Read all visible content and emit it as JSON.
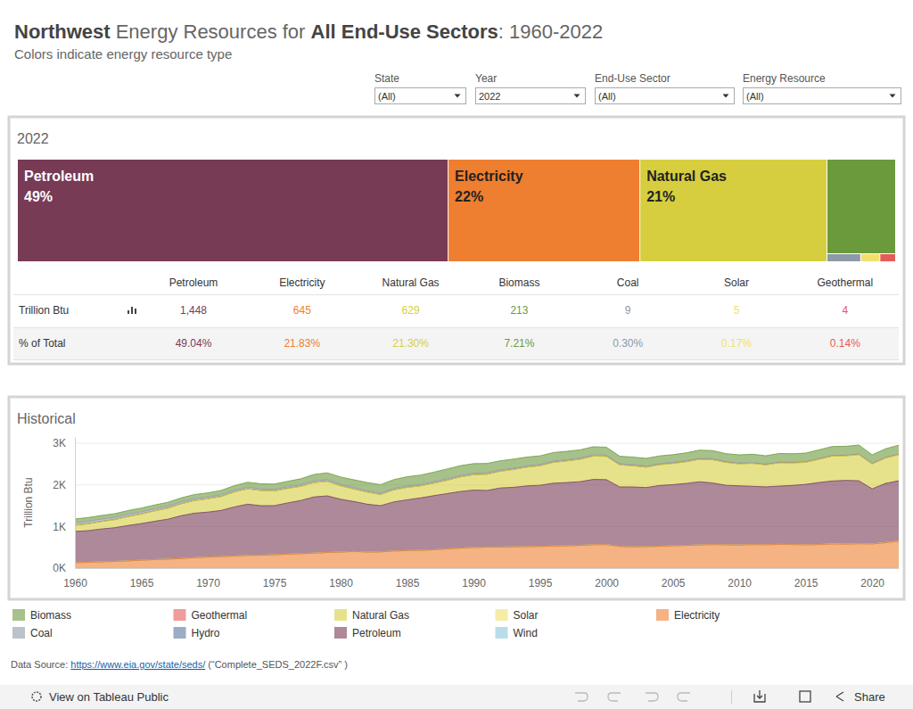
{
  "header": {
    "title": [
      {
        "text": "Northwest",
        "bold": true
      },
      {
        "text": " Energy Resources for ",
        "bold": false
      },
      {
        "text": "All End-Use Sectors",
        "bold": true
      },
      {
        "text": ": 1960-2022",
        "bold": false
      }
    ],
    "subtitle": "Colors indicate energy resource type"
  },
  "filters": [
    {
      "label": "State",
      "value": "(All)"
    },
    {
      "label": "Year",
      "value": "2022"
    },
    {
      "label": "End-Use Sector",
      "value": "(All)"
    },
    {
      "label": "Energy Resource",
      "value": "(All)"
    }
  ],
  "chart_data": [
    {
      "type": "treemap",
      "title": "2022",
      "categories": [
        "Petroleum",
        "Electricity",
        "Natural Gas",
        "Biomass",
        "Coal",
        "Solar",
        "Geothermal"
      ],
      "values": [
        49.04,
        21.83,
        21.3,
        7.21,
        0.3,
        0.17,
        0.14
      ],
      "value_labels": [
        "49%",
        "22%",
        "21%",
        null,
        null,
        null,
        null
      ],
      "colors": [
        "#773B56",
        "#EE7E30",
        "#D6CE3F",
        "#6B9A3C",
        "#8D99A6",
        "#F2E06B",
        "#E45B57"
      ]
    },
    {
      "type": "area",
      "title": "Historical",
      "y_label": "Trillion Btu",
      "stacked": true,
      "grid": true,
      "xlim": [
        1960,
        2022
      ],
      "xticks": [
        1960,
        1965,
        1970,
        1975,
        1980,
        1985,
        1990,
        1995,
        2000,
        2005,
        2010,
        2015,
        2020
      ],
      "ylim": [
        0,
        3150
      ],
      "yticks": [
        {
          "value": 0,
          "label": "0K"
        },
        {
          "value": 1000,
          "label": "1K"
        },
        {
          "value": 2000,
          "label": "2K"
        },
        {
          "value": 3000,
          "label": "3K"
        }
      ],
      "x": [
        1960,
        1961,
        1962,
        1963,
        1964,
        1965,
        1966,
        1967,
        1968,
        1969,
        1970,
        1971,
        1972,
        1973,
        1974,
        1975,
        1976,
        1977,
        1978,
        1979,
        1980,
        1981,
        1982,
        1983,
        1984,
        1985,
        1986,
        1987,
        1988,
        1989,
        1990,
        1991,
        1992,
        1993,
        1994,
        1995,
        1996,
        1997,
        1998,
        1999,
        2000,
        2001,
        2002,
        2003,
        2004,
        2005,
        2006,
        2007,
        2008,
        2009,
        2010,
        2011,
        2012,
        2013,
        2014,
        2015,
        2016,
        2017,
        2018,
        2019,
        2020,
        2021,
        2022
      ],
      "series": [
        {
          "name": "Biomass",
          "color": "#6B9A3C",
          "values": [
            90,
            90,
            88,
            87,
            88,
            90,
            90,
            92,
            95,
            98,
            100,
            105,
            110,
            115,
            120,
            125,
            130,
            140,
            155,
            165,
            175,
            185,
            195,
            200,
            210,
            220,
            225,
            230,
            235,
            235,
            230,
            225,
            220,
            215,
            210,
            205,
            205,
            200,
            195,
            195,
            190,
            180,
            180,
            185,
            185,
            185,
            190,
            195,
            195,
            190,
            195,
            200,
            200,
            205,
            205,
            205,
            210,
            215,
            215,
            215,
            205,
            210,
            213
          ]
        },
        {
          "name": "Coal",
          "color": "#8D99A6",
          "values": [
            60,
            58,
            56,
            55,
            54,
            52,
            50,
            48,
            46,
            44,
            42,
            40,
            40,
            42,
            40,
            38,
            38,
            40,
            40,
            38,
            36,
            35,
            34,
            33,
            34,
            33,
            32,
            33,
            34,
            34,
            33,
            32,
            31,
            31,
            30,
            30,
            30,
            29,
            28,
            28,
            27,
            25,
            24,
            24,
            23,
            22,
            21,
            21,
            20,
            17,
            17,
            16,
            15,
            15,
            14,
            13,
            12,
            12,
            11,
            11,
            10,
            10,
            9
          ]
        },
        {
          "name": "Geothermal",
          "color": "#E45B57",
          "values": [
            1,
            1,
            1,
            1,
            1,
            1,
            1,
            1,
            1,
            1,
            1,
            1,
            1,
            1,
            1,
            1,
            1,
            1,
            1,
            1,
            2,
            2,
            2,
            2,
            2,
            2,
            2,
            2,
            2,
            2,
            2,
            2,
            2,
            2,
            2,
            2,
            2,
            2,
            2,
            2,
            3,
            3,
            3,
            3,
            3,
            3,
            3,
            3,
            3,
            3,
            3,
            3,
            3,
            3,
            3,
            3,
            3,
            3,
            3,
            3,
            3,
            3,
            4
          ]
        },
        {
          "name": "Hydro",
          "color": "#5977A0",
          "values": [
            0,
            0,
            0,
            0,
            0,
            0,
            0,
            0,
            0,
            0,
            0,
            0,
            0,
            0,
            0,
            0,
            0,
            0,
            0,
            0,
            0,
            0,
            0,
            0,
            0,
            0,
            0,
            0,
            0,
            0,
            0,
            0,
            0,
            0,
            0,
            0,
            0,
            0,
            0,
            0,
            0,
            0,
            0,
            0,
            0,
            0,
            0,
            0,
            0,
            0,
            0,
            0,
            0,
            0,
            0,
            0,
            0,
            0,
            0,
            0,
            0,
            0,
            0
          ]
        },
        {
          "name": "Natural Gas",
          "color": "#D6CE3F",
          "values": [
            150,
            165,
            180,
            195,
            215,
            230,
            250,
            265,
            285,
            305,
            320,
            335,
            360,
            370,
            365,
            355,
            350,
            340,
            345,
            350,
            320,
            300,
            290,
            270,
            290,
            300,
            290,
            300,
            320,
            350,
            370,
            390,
            400,
            430,
            450,
            470,
            500,
            520,
            540,
            560,
            560,
            530,
            510,
            490,
            500,
            510,
            520,
            540,
            560,
            550,
            530,
            550,
            530,
            560,
            540,
            530,
            560,
            600,
            590,
            630,
            600,
            610,
            629
          ]
        },
        {
          "name": "Petroleum",
          "color": "#773B56",
          "values": [
            750,
            760,
            790,
            810,
            850,
            880,
            920,
            960,
            1030,
            1070,
            1080,
            1110,
            1180,
            1230,
            1190,
            1180,
            1230,
            1280,
            1350,
            1360,
            1270,
            1200,
            1150,
            1110,
            1180,
            1220,
            1260,
            1300,
            1330,
            1360,
            1380,
            1360,
            1420,
            1430,
            1460,
            1470,
            1510,
            1520,
            1530,
            1570,
            1560,
            1430,
            1440,
            1420,
            1460,
            1470,
            1490,
            1520,
            1480,
            1430,
            1420,
            1400,
            1390,
            1400,
            1420,
            1450,
            1490,
            1510,
            1530,
            1510,
            1320,
            1420,
            1448
          ]
        },
        {
          "name": "Solar",
          "color": "#F2E06B",
          "values": [
            0,
            0,
            0,
            0,
            0,
            0,
            0,
            0,
            0,
            0,
            0,
            0,
            0,
            0,
            0,
            0,
            0,
            0,
            0,
            0,
            0,
            0,
            0,
            0,
            0,
            0,
            0,
            0,
            0,
            0,
            0,
            0,
            0,
            0,
            0,
            0,
            0,
            0,
            0,
            0,
            0,
            0,
            0,
            0,
            0,
            0,
            0,
            0,
            0,
            0,
            1,
            1,
            1,
            1,
            1,
            2,
            2,
            2,
            3,
            3,
            4,
            4,
            5
          ]
        },
        {
          "name": "Wind",
          "color": "#89C7DB",
          "values": [
            0,
            0,
            0,
            0,
            0,
            0,
            0,
            0,
            0,
            0,
            0,
            0,
            0,
            0,
            0,
            0,
            0,
            0,
            0,
            0,
            0,
            0,
            0,
            0,
            0,
            0,
            0,
            0,
            0,
            0,
            0,
            0,
            0,
            0,
            0,
            0,
            0,
            0,
            0,
            0,
            0,
            0,
            0,
            0,
            0,
            0,
            0,
            0,
            0,
            0,
            0,
            0,
            0,
            0,
            0,
            0,
            0,
            0,
            0,
            0,
            0,
            0,
            0
          ]
        },
        {
          "name": "Electricity",
          "color": "#EE7E30",
          "values": [
            130,
            140,
            150,
            160,
            175,
            190,
            205,
            215,
            230,
            250,
            265,
            275,
            290,
            305,
            310,
            320,
            335,
            345,
            360,
            375,
            385,
            400,
            385,
            390,
            410,
            420,
            425,
            440,
            460,
            480,
            495,
            505,
            505,
            510,
            515,
            520,
            530,
            535,
            545,
            560,
            565,
            520,
            510,
            515,
            525,
            535,
            545,
            555,
            565,
            560,
            555,
            565,
            560,
            570,
            565,
            560,
            565,
            580,
            575,
            585,
            580,
            610,
            645
          ]
        }
      ]
    }
  ],
  "table": {
    "columns": [
      "Petroleum",
      "Electricity",
      "Natural Gas",
      "Biomass",
      "Coal",
      "Solar",
      "Geothermal"
    ],
    "rows": [
      {
        "label": "Trillion Btu",
        "cells": [
          "1,448",
          "645",
          "629",
          "213",
          "9",
          "5",
          "4"
        ]
      },
      {
        "label": "% of Total",
        "cells": [
          "49.04%",
          "21.83%",
          "21.30%",
          "7.21%",
          "0.30%",
          "0.17%",
          "0.14%"
        ]
      }
    ]
  },
  "footer": {
    "prefix": "Data Source: ",
    "link": "https://www.eia.gov/state/seds/",
    "suffix": " (“Complete_SEDS_2022F.csv” )"
  },
  "toolbar": {
    "view": "View on Tableau Public",
    "share": "Share"
  }
}
